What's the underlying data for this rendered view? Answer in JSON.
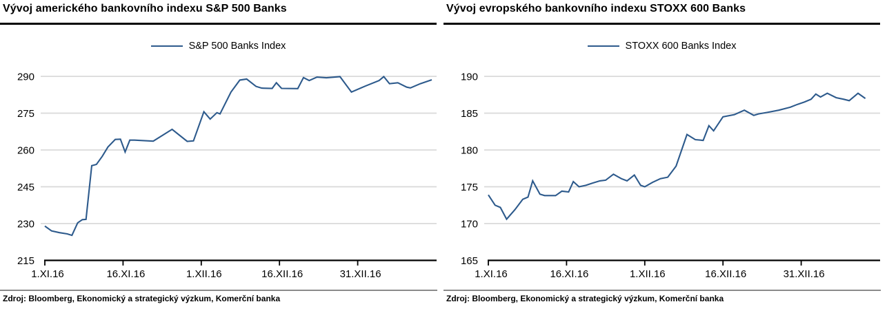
{
  "colors": {
    "line": "#2d5a8c",
    "grid": "#d9d9d9",
    "axis": "#000000",
    "separator": "#8a8a8a",
    "text": "#000000",
    "background": "#ffffff"
  },
  "chart_data": [
    {
      "type": "line",
      "title": "Vývoj amerického bankovního indexu S&P 500 Banks",
      "source": "Zdroj: Bloomberg, Ekonomický a strategický výzkum, Komerční banka",
      "legend_position": "top-center",
      "grid": "horizontal",
      "ylim": [
        215,
        290
      ],
      "yticks": [
        215,
        230,
        245,
        260,
        275,
        290
      ],
      "x_unit": "days since 1.XI.16",
      "x_range": [
        0,
        75
      ],
      "x_ticks": [
        {
          "d": 0,
          "label": "1.XI.16"
        },
        {
          "d": 15,
          "label": "16.XI.16"
        },
        {
          "d": 30,
          "label": "1.XII.16"
        },
        {
          "d": 45,
          "label": "16.XII.16"
        },
        {
          "d": 60,
          "label": "31.XII.16"
        }
      ],
      "series": [
        {
          "name": "S&P 500 Banks Index",
          "color": "#2d5a8c",
          "points": [
            [
              0,
              229
            ],
            [
              1.3,
              227
            ],
            [
              2.8,
              226.3
            ],
            [
              4.3,
              225.8
            ],
            [
              5.2,
              225.2
            ],
            [
              6.3,
              230.3
            ],
            [
              7.2,
              231.6
            ],
            [
              7.9,
              231.7
            ],
            [
              9,
              253.6
            ],
            [
              9.9,
              254.1
            ],
            [
              11,
              257.4
            ],
            [
              12.1,
              261.2
            ],
            [
              13.5,
              264.3
            ],
            [
              14.5,
              264.4
            ],
            [
              15.4,
              259.2
            ],
            [
              16.3,
              264
            ],
            [
              17.2,
              264
            ],
            [
              20.8,
              263.6
            ],
            [
              24.4,
              268.4
            ],
            [
              27.3,
              263.5
            ],
            [
              28.5,
              263.7
            ],
            [
              30.5,
              275.6
            ],
            [
              31.7,
              272.6
            ],
            [
              33,
              275.2
            ],
            [
              33.6,
              274.7
            ],
            [
              35.7,
              283.6
            ],
            [
              37.4,
              288.5
            ],
            [
              38.7,
              288.9
            ],
            [
              40.5,
              285.9
            ],
            [
              41.6,
              285.2
            ],
            [
              43.6,
              285.1
            ],
            [
              44.4,
              287.4
            ],
            [
              45.4,
              285.1
            ],
            [
              48.5,
              285
            ],
            [
              49.6,
              289.5
            ],
            [
              50.7,
              288.3
            ],
            [
              52.2,
              289.7
            ],
            [
              54,
              289.4
            ],
            [
              56.6,
              289.9
            ],
            [
              58.8,
              283.6
            ],
            [
              61.4,
              286
            ],
            [
              64.1,
              288.3
            ],
            [
              65,
              289.9
            ],
            [
              66.1,
              287
            ],
            [
              67.7,
              287.4
            ],
            [
              69.4,
              285.6
            ],
            [
              70.1,
              285.3
            ],
            [
              72,
              287
            ],
            [
              74.2,
              288.6
            ]
          ]
        }
      ]
    },
    {
      "type": "line",
      "title": "Vývoj evropského bankovního indexu STOXX 600 Banks",
      "source": "Zdroj: Bloomberg, Ekonomický a strategický výzkum, Komerční banka",
      "legend_position": "top-center",
      "grid": "horizontal",
      "ylim": [
        165,
        190
      ],
      "yticks": [
        165,
        170,
        175,
        180,
        185,
        190
      ],
      "x_unit": "days since 1.XI.16",
      "x_range": [
        0,
        75
      ],
      "x_ticks": [
        {
          "d": 0,
          "label": "1.XI.16"
        },
        {
          "d": 15,
          "label": "16.XI.16"
        },
        {
          "d": 30,
          "label": "1.XII.16"
        },
        {
          "d": 45,
          "label": "16.XII.16"
        },
        {
          "d": 60,
          "label": "31.XII.16"
        }
      ],
      "series": [
        {
          "name": "STOXX 600 Banks Index",
          "color": "#2d5a8c",
          "points": [
            [
              0,
              173.9
            ],
            [
              1.3,
              172.5
            ],
            [
              2.3,
              172.2
            ],
            [
              3.5,
              170.6
            ],
            [
              5.1,
              171.9
            ],
            [
              6.6,
              173.3
            ],
            [
              7.6,
              173.6
            ],
            [
              8.5,
              175.8
            ],
            [
              9.9,
              174
            ],
            [
              10.8,
              173.8
            ],
            [
              12.9,
              173.8
            ],
            [
              14.1,
              174.4
            ],
            [
              15.4,
              174.3
            ],
            [
              16.3,
              175.7
            ],
            [
              17.4,
              175
            ],
            [
              18.7,
              175.2
            ],
            [
              20,
              175.5
            ],
            [
              21.4,
              175.8
            ],
            [
              22.5,
              175.9
            ],
            [
              24,
              176.7
            ],
            [
              25.5,
              176.1
            ],
            [
              26.6,
              175.8
            ],
            [
              28,
              176.6
            ],
            [
              29.2,
              175.2
            ],
            [
              30,
              175
            ],
            [
              31.5,
              175.6
            ],
            [
              33,
              176.1
            ],
            [
              34.4,
              176.3
            ],
            [
              36,
              177.8
            ],
            [
              38.1,
              182.1
            ],
            [
              39.7,
              181.4
            ],
            [
              41.2,
              181.3
            ],
            [
              42.3,
              183.3
            ],
            [
              43.2,
              182.6
            ],
            [
              45,
              184.5
            ],
            [
              47.2,
              184.8
            ],
            [
              49.1,
              185.4
            ],
            [
              50.9,
              184.7
            ],
            [
              51.8,
              184.9
            ],
            [
              53.5,
              185.1
            ],
            [
              55.7,
              185.4
            ],
            [
              57.9,
              185.8
            ],
            [
              59.3,
              186.2
            ],
            [
              60.6,
              186.5
            ],
            [
              61.9,
              186.9
            ],
            [
              62.8,
              187.6
            ],
            [
              63.7,
              187.2
            ],
            [
              65,
              187.7
            ],
            [
              66.7,
              187.1
            ],
            [
              68.1,
              186.9
            ],
            [
              69.2,
              186.7
            ],
            [
              70.9,
              187.7
            ],
            [
              72.3,
              187
            ]
          ]
        }
      ]
    }
  ]
}
